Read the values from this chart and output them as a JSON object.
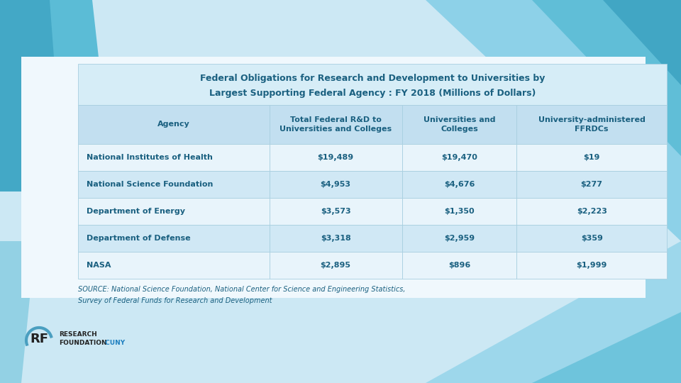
{
  "title_line1": "Federal Obligations for Research and Development to Universities by",
  "title_line2": "Largest Supporting Federal Agency : FY 2018 (Millions of Dollars)",
  "col_headers": [
    "Agency",
    "Total Federal R&D to\nUniversities and Colleges",
    "Universities and\nColleges",
    "University-administered\nFFRDCs"
  ],
  "rows": [
    [
      "National Institutes of Health",
      "$19,489",
      "$19,470",
      "$19"
    ],
    [
      "National Science Foundation",
      "$4,953",
      "$4,676",
      "$277"
    ],
    [
      "Department of Energy",
      "$3,573",
      "$1,350",
      "$2,223"
    ],
    [
      "Department of Defense",
      "$3,318",
      "$2,959",
      "$359"
    ],
    [
      "NASA",
      "$2,895",
      "$896",
      "$1,999"
    ]
  ],
  "source_line1": "SOURCE: National Science Foundation, National Center for Science and Engineering Statistics,",
  "source_line2": "Survey of Federal Funds for Research and Development",
  "bg_outer": "#cce8f4",
  "bg_white": "#f0f8fd",
  "title_bg": "#d6edf7",
  "header_bg": "#c2dff0",
  "row_bg_light": "#e8f4fb",
  "row_bg_mid": "#d0e8f5",
  "text_color": "#1a6080",
  "border_color": "#a8cfe0",
  "shape1_color": "#5bbcd6",
  "shape2_color": "#3aa0c0",
  "shape3_color": "#7ecce6",
  "logo_rf_color": "#222222",
  "logo_cuny_color": "#2080c0"
}
